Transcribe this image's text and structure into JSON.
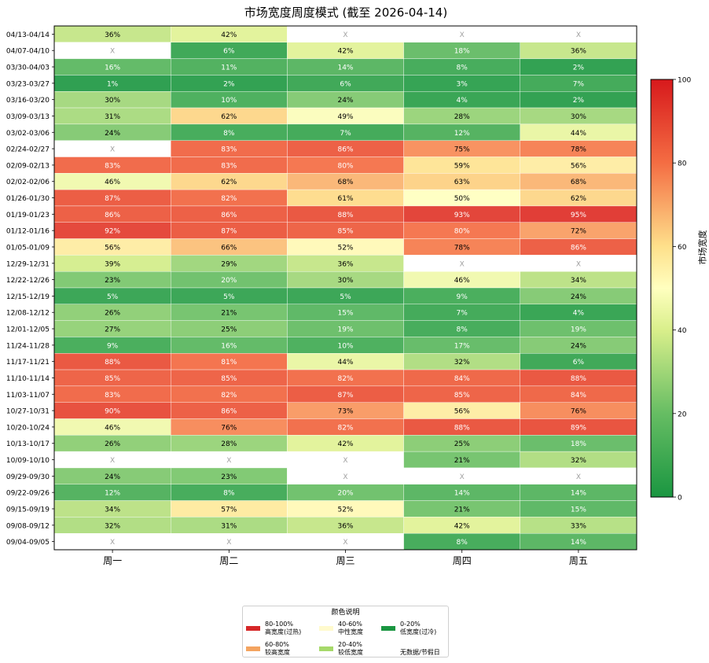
{
  "chart_data": {
    "type": "heatmap",
    "title": "市场宽度周度模式 (截至 2026-04-14)",
    "weeks": [
      "04/13-04/14",
      "04/07-04/10",
      "03/30-04/03",
      "03/23-03/27",
      "03/16-03/20",
      "03/09-03/13",
      "03/02-03/06",
      "02/24-02/27",
      "02/09-02/13",
      "02/02-02/06",
      "01/26-01/30",
      "01/19-01/23",
      "01/12-01/16",
      "01/05-01/09",
      "12/29-12/31",
      "12/22-12/26",
      "12/15-12/19",
      "12/08-12/12",
      "12/01-12/05",
      "11/24-11/28",
      "11/17-11/21",
      "11/10-11/14",
      "11/03-11/07",
      "10/27-10/31",
      "10/20-10/24",
      "10/13-10/17",
      "10/09-10/10",
      "09/29-09/30",
      "09/22-09/26",
      "09/15-09/19",
      "09/08-09/12",
      "09/04-09/05"
    ],
    "weekdays": [
      "周一",
      "周二",
      "周三",
      "周四",
      "周五"
    ],
    "values": [
      [
        36,
        42,
        null,
        null,
        null
      ],
      [
        null,
        6,
        42,
        18,
        36
      ],
      [
        16,
        11,
        14,
        8,
        2
      ],
      [
        1,
        2,
        6,
        3,
        7
      ],
      [
        30,
        10,
        24,
        4,
        2
      ],
      [
        31,
        62,
        49,
        28,
        30
      ],
      [
        24,
        8,
        7,
        12,
        44
      ],
      [
        null,
        83,
        86,
        75,
        78
      ],
      [
        83,
        83,
        80,
        59,
        56
      ],
      [
        46,
        62,
        68,
        63,
        68
      ],
      [
        87,
        82,
        61,
        50,
        62
      ],
      [
        86,
        86,
        88,
        93,
        95
      ],
      [
        92,
        87,
        85,
        80,
        72
      ],
      [
        56,
        66,
        52,
        78,
        86
      ],
      [
        39,
        29,
        36,
        null,
        null
      ],
      [
        23,
        20,
        30,
        46,
        34
      ],
      [
        5,
        5,
        5,
        9,
        24
      ],
      [
        26,
        21,
        15,
        7,
        4
      ],
      [
        27,
        25,
        19,
        8,
        19
      ],
      [
        9,
        16,
        10,
        17,
        24
      ],
      [
        88,
        81,
        44,
        32,
        6
      ],
      [
        85,
        85,
        82,
        84,
        88
      ],
      [
        83,
        82,
        87,
        85,
        84
      ],
      [
        90,
        86,
        73,
        56,
        76
      ],
      [
        46,
        76,
        82,
        88,
        89
      ],
      [
        26,
        28,
        42,
        25,
        18
      ],
      [
        null,
        null,
        null,
        21,
        32
      ],
      [
        24,
        23,
        null,
        null,
        null
      ],
      [
        12,
        8,
        20,
        14,
        14
      ],
      [
        34,
        57,
        52,
        21,
        15
      ],
      [
        32,
        31,
        36,
        42,
        33
      ],
      [
        null,
        null,
        null,
        8,
        14
      ]
    ],
    "missing_marker": "X",
    "value_suffix": "%",
    "colorbar": {
      "label": "市场宽度(%)",
      "range": [
        0,
        100
      ],
      "ticks": [
        "0",
        "20",
        "40",
        "60",
        "80",
        "100"
      ]
    },
    "legend": {
      "title": "颜色说明",
      "items": [
        {
          "range": "80-100%",
          "desc": "高宽度(过热)",
          "color": "#d62728"
        },
        {
          "range": "60-80%",
          "desc": "较高宽度",
          "color": "#f4a460"
        },
        {
          "range": "40-60%",
          "desc": "中性宽度",
          "color": "#fffacd"
        },
        {
          "range": "20-40%",
          "desc": "较低宽度",
          "color": "#a6d96a"
        },
        {
          "range": "0-20%",
          "desc": "低宽度(过冷)",
          "color": "#1a9641"
        },
        {
          "range": "",
          "desc": "无数据/节假日",
          "color": "#ffffff"
        }
      ]
    }
  }
}
